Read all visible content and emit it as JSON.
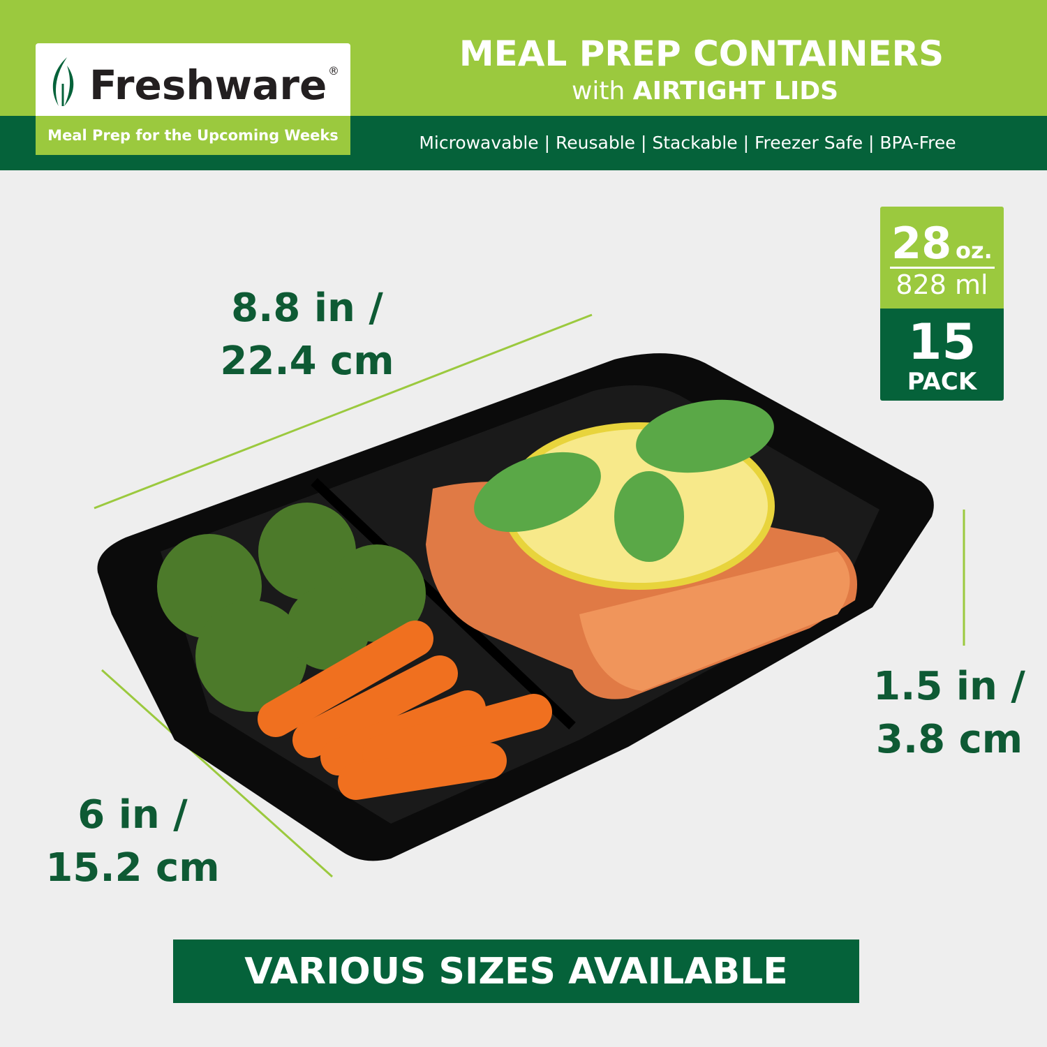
{
  "brand": {
    "name": "Freshware",
    "registered": "®",
    "tagline": "Meal Prep for the Upcoming Weeks"
  },
  "header": {
    "title": "MEAL PREP CONTAINERS",
    "subtitle_prefix": "with",
    "subtitle_bold": "AIRTIGHT LIDS",
    "features": "Microwavable | Reusable | Stackable | Freezer Safe | BPA-Free"
  },
  "dimensions": {
    "length": {
      "line1": "8.8 in /",
      "line2": "22.4 cm"
    },
    "width": {
      "line1": "6 in /",
      "line2": "15.2 cm"
    },
    "height": {
      "line1": "1.5 in /",
      "line2": "3.8 cm"
    }
  },
  "badge": {
    "capacity": "28",
    "capacity_unit": "oz.",
    "metric": "828 ml",
    "pack_count": "15",
    "pack_label": "PACK"
  },
  "banner": "VARIOUS SIZES AVAILABLE",
  "colors": {
    "light_green": "#9bc93e",
    "dark_green": "#05623a",
    "dimension_text": "#0e5a34",
    "background": "#eeeeee"
  }
}
